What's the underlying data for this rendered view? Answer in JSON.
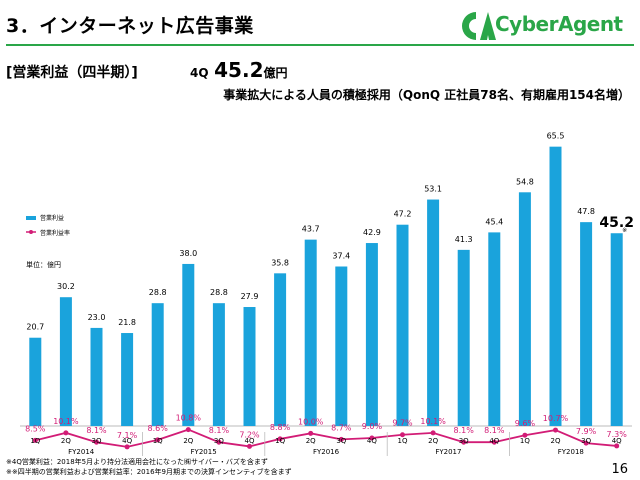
{
  "header": {
    "title": "3．インターネット広告事業",
    "logo": "CyberAgent",
    "logo_icon": "cyberagent-logo-icon",
    "brand_color": "#2aa648"
  },
  "section_label": "[営業利益（四半期）]",
  "headline": {
    "quarter": "4Q",
    "value": "45.2",
    "unit": "億円"
  },
  "subheadline": "事業拡大による人員の積極採用（QonQ 正社員78名、有期雇用154名増）",
  "unit_label": "単位：億円",
  "footnotes": [
    "※4Q営業利益：2018年5月より持分法適用会社になった㈱サイバー・バズを含まず",
    "※※四半期の営業利益および営業利益率：2016年9月期までの決算インセンティブを含まず"
  ],
  "page_number": "16",
  "chart_data": {
    "type": "bar",
    "categories": [
      "1Q",
      "2Q",
      "3Q",
      "4Q",
      "1Q",
      "2Q",
      "3Q",
      "4Q",
      "1Q",
      "2Q",
      "3Q",
      "4Q",
      "1Q",
      "2Q",
      "3Q",
      "4Q",
      "1Q",
      "2Q",
      "3Q",
      "4Q"
    ],
    "groups": [
      {
        "label": "FY2014",
        "count": 4
      },
      {
        "label": "FY2015",
        "count": 4
      },
      {
        "label": "FY2016",
        "count": 4
      },
      {
        "label": "FY2017",
        "count": 4
      },
      {
        "label": "FY2018",
        "count": 4
      }
    ],
    "series": [
      {
        "name": "営業利益",
        "type": "bar",
        "color": "#1aa3dc",
        "values": [
          20.7,
          30.2,
          23.0,
          21.8,
          28.8,
          38.0,
          28.8,
          27.9,
          35.8,
          43.7,
          37.4,
          42.9,
          47.2,
          53.1,
          41.3,
          45.4,
          54.8,
          65.5,
          47.8,
          45.2
        ],
        "labels": [
          "20.7",
          "30.2",
          "23.0",
          "21.8",
          "28.8",
          "38.0",
          "28.8",
          "27.9",
          "35.8",
          "43.7",
          "37.4",
          "42.9",
          "47.2",
          "53.1",
          "41.3",
          "45.4",
          "54.8",
          "65.5",
          "47.8",
          "45.2"
        ]
      },
      {
        "name": "営業利益率",
        "type": "line",
        "color": "#d21c76",
        "values": [
          8.5,
          10.1,
          8.1,
          7.1,
          8.6,
          10.8,
          8.1,
          7.2,
          8.8,
          10.0,
          8.7,
          9.0,
          9.7,
          10.1,
          8.1,
          8.1,
          9.6,
          10.7,
          7.9,
          7.3
        ],
        "labels": [
          "8.5%",
          "10.1%",
          "8.1%",
          "7.1%",
          "8.6%",
          "10.8%",
          "8.1%",
          "7.2%",
          "8.8%",
          "10.0%",
          "8.7%",
          "9.0%",
          "9.7%",
          "10.1%",
          "8.1%",
          "8.1%",
          "9.6%",
          "10.7%",
          "7.9%",
          "7.3%"
        ]
      }
    ],
    "last_bar_note": "※",
    "ylim": [
      0,
      68
    ],
    "rate_ylim": [
      0,
      24
    ],
    "legend_position": "left",
    "grid": false
  }
}
